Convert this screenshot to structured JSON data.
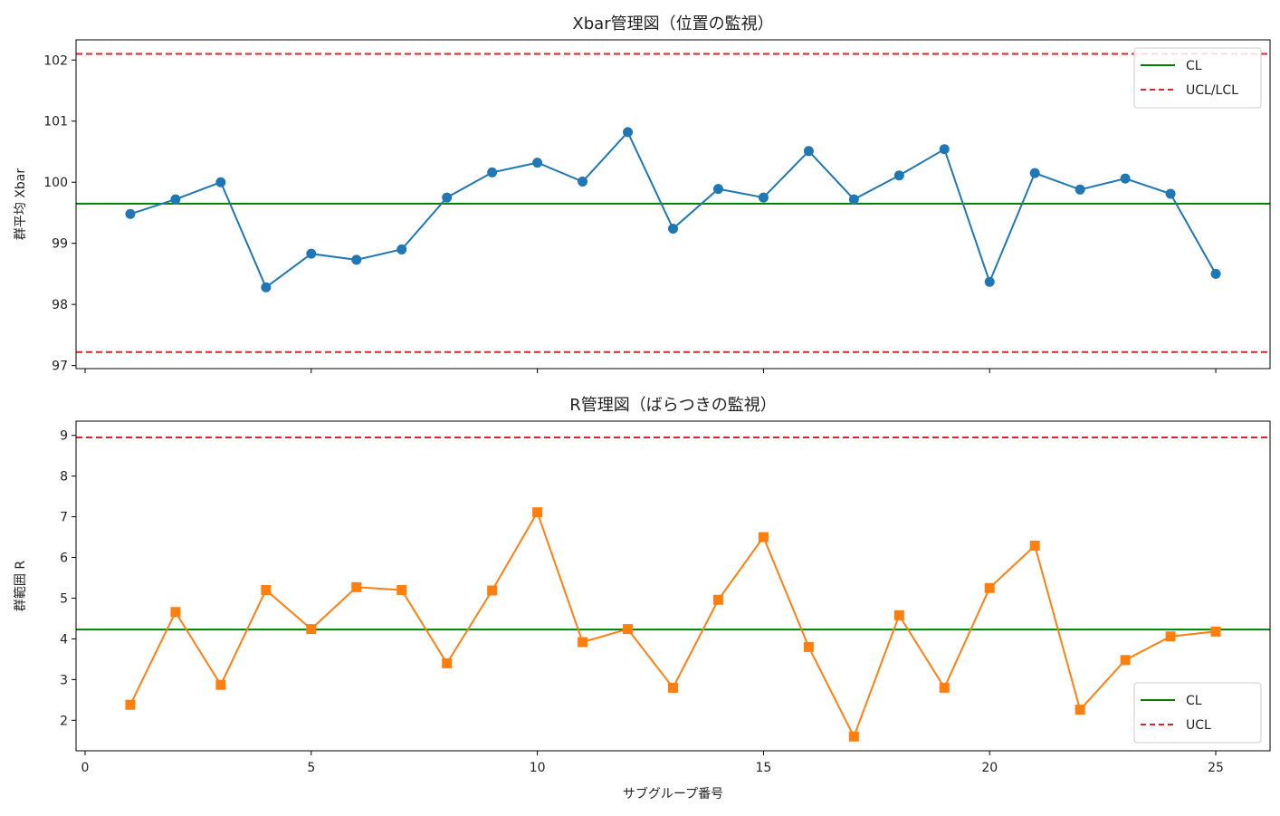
{
  "chart_data": [
    {
      "type": "line",
      "title": "Xbar管理図（位置の監視）",
      "xlabel": "",
      "ylabel": "群平均 Xbar",
      "xlim": [
        -0.2,
        26.2
      ],
      "ylim": [
        96.95,
        102.33
      ],
      "xticks": [
        0,
        5,
        10,
        15,
        20,
        25
      ],
      "yticks": [
        97,
        98,
        99,
        100,
        101,
        102
      ],
      "x": [
        1,
        2,
        3,
        4,
        5,
        6,
        7,
        8,
        9,
        10,
        11,
        12,
        13,
        14,
        15,
        16,
        17,
        18,
        19,
        20,
        21,
        22,
        23,
        24,
        25
      ],
      "series": [
        {
          "name": "",
          "marker": "circle",
          "color": "#1f77b4",
          "values": [
            99.48,
            99.72,
            100.0,
            98.28,
            98.83,
            98.73,
            98.9,
            99.75,
            100.16,
            100.32,
            100.01,
            100.82,
            99.24,
            99.89,
            99.75,
            100.51,
            99.72,
            100.11,
            100.54,
            98.37,
            100.15,
            99.88,
            100.06,
            99.81,
            98.5
          ]
        }
      ],
      "lines": [
        {
          "label": "CL",
          "value": 99.65,
          "color": "#008000",
          "style": "solid"
        },
        {
          "label": "UCL/LCL",
          "value": 102.1,
          "color": "#d62728",
          "style": "dashed"
        },
        {
          "label": "",
          "value": 97.22,
          "color": "#d62728",
          "style": "dashed"
        }
      ],
      "legend": {
        "placement": "top-right",
        "items": [
          {
            "label": "CL",
            "color": "#008000",
            "style": "solid"
          },
          {
            "label": "UCL/LCL",
            "color": "#d62728",
            "style": "dashed"
          }
        ]
      },
      "grid": false,
      "show_xtick_labels": false
    },
    {
      "type": "line",
      "title": "R管理図（ばらつきの監視）",
      "xlabel": "サブグループ番号",
      "ylabel": "群範囲 R",
      "xlim": [
        -0.2,
        26.2
      ],
      "ylim": [
        1.25,
        9.35
      ],
      "xticks": [
        0,
        5,
        10,
        15,
        20,
        25
      ],
      "yticks": [
        2,
        3,
        4,
        5,
        6,
        7,
        8,
        9
      ],
      "x": [
        1,
        2,
        3,
        4,
        5,
        6,
        7,
        8,
        9,
        10,
        11,
        12,
        13,
        14,
        15,
        16,
        17,
        18,
        19,
        20,
        21,
        22,
        23,
        24,
        25
      ],
      "series": [
        {
          "name": "",
          "marker": "square",
          "color": "#ff7f0e",
          "values": [
            2.38,
            4.66,
            2.87,
            5.2,
            4.24,
            5.27,
            5.2,
            3.4,
            5.19,
            7.11,
            3.92,
            4.24,
            2.8,
            4.96,
            6.5,
            3.8,
            1.6,
            4.58,
            2.8,
            5.25,
            6.29,
            2.26,
            3.48,
            4.06,
            4.18
          ]
        }
      ],
      "lines": [
        {
          "label": "CL",
          "value": 4.23,
          "color": "#008000",
          "style": "solid"
        },
        {
          "label": "UCL",
          "value": 8.95,
          "color": "#d62728",
          "style": "dashed"
        }
      ],
      "legend": {
        "placement": "bottom-right",
        "items": [
          {
            "label": "CL",
            "color": "#008000",
            "style": "solid"
          },
          {
            "label": "UCL",
            "color": "#d62728",
            "style": "dashed"
          }
        ]
      },
      "grid": false,
      "show_xtick_labels": true
    }
  ]
}
